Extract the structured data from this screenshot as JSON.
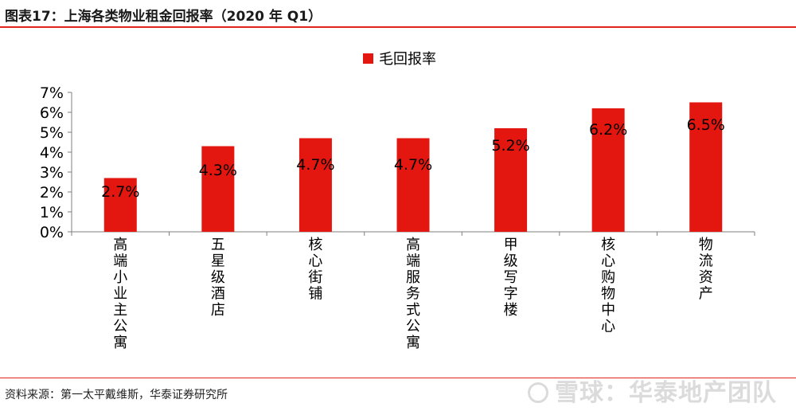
{
  "header": {
    "title": "图表17：上海各类物业租金回报率（2020 年 Q1）"
  },
  "footer": {
    "source": "资料来源：第一太平戴维斯，华泰证券研究所",
    "watermark": "雪球：华泰地产团队"
  },
  "colors": {
    "bar": "#e3170f",
    "rule": "#e2231a",
    "axis": "#7f7f7f"
  },
  "chart_data": {
    "type": "bar",
    "categories": [
      "高端小业主公寓",
      "五星级酒店",
      "核心街铺",
      "高端服务式公寓",
      "甲级写字楼",
      "核心购物中心",
      "物流资产"
    ],
    "series": [
      {
        "name": "毛回报率",
        "values": [
          2.7,
          4.3,
          4.7,
          4.7,
          5.2,
          6.2,
          6.5
        ]
      }
    ],
    "data_labels": [
      "2.7%",
      "4.3%",
      "4.7%",
      "4.7%",
      "5.2%",
      "6.2%",
      "6.5%"
    ],
    "ylim": [
      0,
      7
    ],
    "yticks": [
      "0%",
      "1%",
      "2%",
      "3%",
      "4%",
      "5%",
      "6%",
      "7%"
    ],
    "legend_position": "top-center",
    "grid": false
  }
}
